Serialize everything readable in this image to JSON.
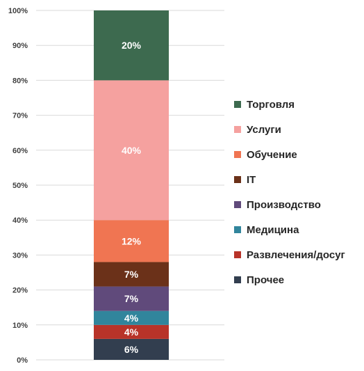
{
  "chart_data": {
    "type": "bar",
    "stacked": true,
    "categories": [
      ""
    ],
    "title": "",
    "xlabel": "",
    "ylabel": "",
    "ylim": [
      0,
      100
    ],
    "yticks": [
      "0%",
      "10%",
      "20%",
      "30%",
      "40%",
      "50%",
      "60%",
      "70%",
      "80%",
      "90%",
      "100%"
    ],
    "grid": true,
    "legend_position": "right",
    "series": [
      {
        "name": "Прочее",
        "values": [
          6
        ],
        "label": "6%",
        "color": "#323E4F"
      },
      {
        "name": "Развлечения/досуг",
        "values": [
          4
        ],
        "label": "4%",
        "color": "#B83329"
      },
      {
        "name": "Медицина",
        "values": [
          4
        ],
        "label": "4%",
        "color": "#31859C"
      },
      {
        "name": "Производство",
        "values": [
          7
        ],
        "label": "7%",
        "color": "#604A7B"
      },
      {
        "name": "IT",
        "values": [
          7
        ],
        "label": "7%",
        "color": "#6B3119"
      },
      {
        "name": "Обучение",
        "values": [
          12
        ],
        "label": "12%",
        "color": "#F07552"
      },
      {
        "name": "Услуги",
        "values": [
          40
        ],
        "label": "40%",
        "color": "#F5A19F"
      },
      {
        "name": "Торговля",
        "values": [
          20
        ],
        "label": "20%",
        "color": "#3D6A4F"
      }
    ],
    "legend_order": [
      "Торговля",
      "Услуги",
      "Обучение",
      "IT",
      "Производство",
      "Медицина",
      "Развлечения/досуг",
      "Прочее"
    ]
  }
}
